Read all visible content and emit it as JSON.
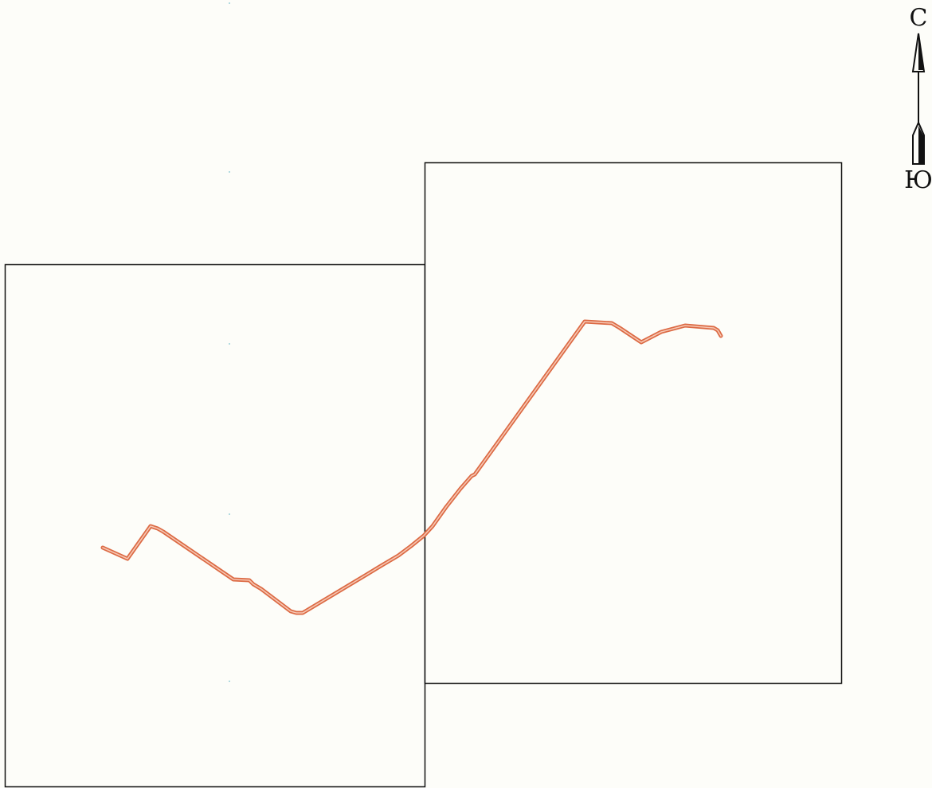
{
  "compass": {
    "north_label": "С",
    "south_label": "Ю",
    "color": "#111111"
  },
  "map": {
    "background_color": "#fdfdf9",
    "sheet_border_color": "#111111",
    "route_color": "#dc6a44",
    "route_inner_color": "#f6c7b3"
  }
}
